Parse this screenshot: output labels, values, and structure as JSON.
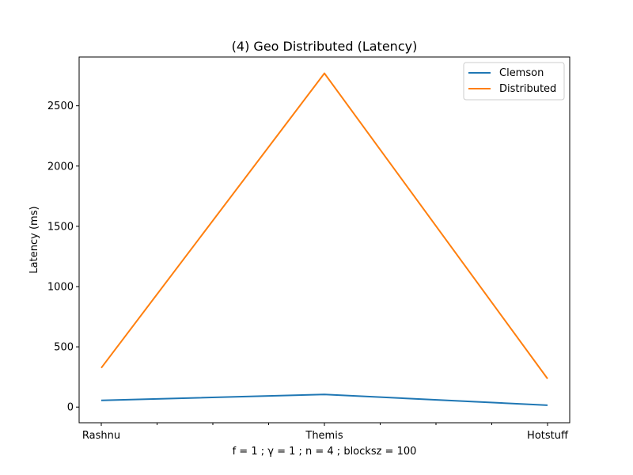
{
  "chart_data": {
    "type": "line",
    "title": "(4) Geo Distributed (Latency)",
    "xlabel": "f = 1 ; γ = 1 ; n = 4 ; blocksz = 100",
    "ylabel": "Latency (ms)",
    "categories": [
      "Rashnu",
      "Themis",
      "Hotstuff"
    ],
    "y_ticks": [
      0,
      500,
      1000,
      1500,
      2000,
      2500
    ],
    "ylim": [
      -130,
      2905
    ],
    "grid": false,
    "legend_position": "top-right",
    "series": [
      {
        "name": "Clemson",
        "color": "#1f77b4",
        "values": [
          55,
          105,
          15
        ]
      },
      {
        "name": "Distributed",
        "color": "#ff7f0e",
        "values": [
          325,
          2770,
          235
        ]
      }
    ]
  }
}
